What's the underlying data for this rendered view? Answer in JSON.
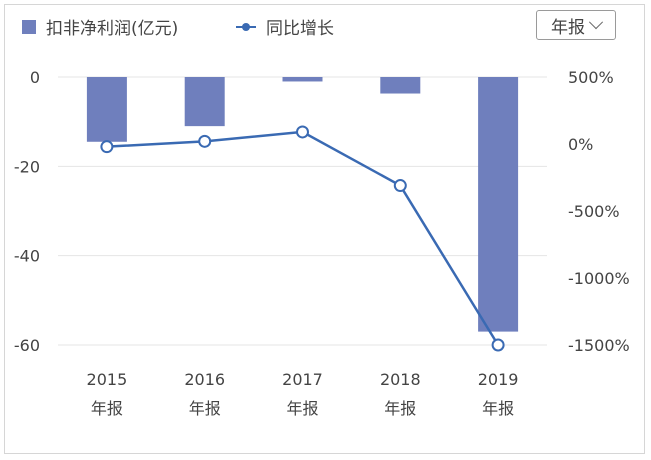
{
  "legend": {
    "bar_label": "扣非净利润(亿元)",
    "line_label": "同比增长"
  },
  "period_selector": {
    "value": "年报"
  },
  "colors": {
    "bar": "#6f7fbd",
    "line": "#3a6ab3",
    "grid": "#e4e4e4",
    "text": "#444444"
  },
  "chart_data": {
    "type": "bar",
    "categories": [
      "2015",
      "2016",
      "2017",
      "2018",
      "2019"
    ],
    "category_sublabels": [
      "年报",
      "年报",
      "年报",
      "年报",
      "年报"
    ],
    "series": [
      {
        "name": "扣非净利润(亿元)",
        "type": "bar",
        "axis": "left",
        "values": [
          -14.5,
          -11,
          -1,
          -3.7,
          -57
        ]
      },
      {
        "name": "同比增长",
        "type": "line",
        "axis": "right",
        "values": [
          -20,
          20,
          90,
          -310,
          -1500
        ]
      }
    ],
    "y_left": {
      "ticks": [
        "0",
        "-20",
        "-40",
        "-60"
      ],
      "tick_values": [
        0,
        -20,
        -40,
        -60
      ],
      "range": [
        -60,
        0
      ]
    },
    "y_right": {
      "ticks": [
        "500%",
        "0%",
        "-500%",
        "-1000%",
        "-1500%"
      ],
      "tick_values": [
        500,
        0,
        -500,
        -1000,
        -1500
      ],
      "range": [
        -1500,
        500
      ]
    },
    "grid": true,
    "legend_position": "top-left"
  }
}
